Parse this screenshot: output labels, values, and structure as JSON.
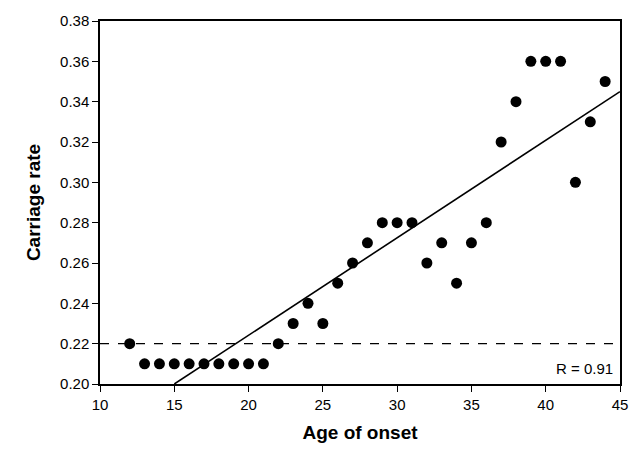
{
  "chart_data": {
    "type": "scatter",
    "x_label": "Age of onset",
    "y_label": "Carriage rate",
    "x": [
      12,
      13,
      14,
      15,
      16,
      17,
      18,
      19,
      20,
      21,
      22,
      23,
      24,
      25,
      26,
      27,
      28,
      29,
      30,
      31,
      32,
      33,
      34,
      35,
      36,
      37,
      38,
      39,
      40,
      41,
      42,
      43,
      44
    ],
    "values": [
      0.22,
      0.21,
      0.21,
      0.21,
      0.21,
      0.21,
      0.21,
      0.21,
      0.21,
      0.21,
      0.22,
      0.23,
      0.24,
      0.23,
      0.25,
      0.26,
      0.27,
      0.28,
      0.28,
      0.28,
      0.26,
      0.27,
      0.25,
      0.27,
      0.28,
      0.32,
      0.34,
      0.36,
      0.36,
      0.36,
      0.3,
      0.33,
      0.35
    ],
    "color": "#000000",
    "marker": "circle",
    "trend": {
      "x": [
        15,
        45
      ],
      "values": [
        0.2,
        0.345
      ],
      "color": "#000000",
      "line_style": "solid"
    },
    "reference_line": {
      "value": 0.22,
      "color": "#000000",
      "line_style": "dash"
    },
    "annotation": "R = 0.91",
    "xlim": [
      10,
      45
    ],
    "xticks": [
      10,
      15,
      20,
      25,
      30,
      35,
      40,
      45
    ],
    "ylim": [
      0.2,
      0.38
    ],
    "yticks": [
      {
        "value": 0.2,
        "label": "0.20"
      },
      0.22,
      0.24,
      0.26,
      0.28,
      {
        "value": 0.3,
        "label": "0.30"
      },
      0.32,
      0.34,
      0.36,
      0.38
    ],
    "grid": false
  }
}
